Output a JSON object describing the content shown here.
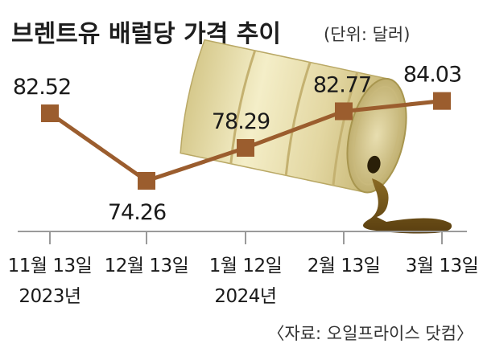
{
  "title": "브렌트유 배럴당 가격 추이",
  "unit": "(단위: 달러)",
  "source": "〈자료: 오일프라이스 닷컴〉",
  "colors": {
    "line": "#9b5d2e",
    "marker": "#9b5d2e",
    "barrel": "#e6dcaa",
    "oil": "#7a5a1c"
  },
  "chart_data": {
    "type": "line",
    "categories": [
      "11월 13일",
      "12월 13일",
      "1월 12일",
      "2월 13일",
      "3월 13일"
    ],
    "category_years": [
      "2023년",
      "",
      "2024년",
      "",
      ""
    ],
    "values": [
      82.52,
      74.26,
      78.29,
      82.77,
      84.03
    ],
    "value_labels": [
      "82.52",
      "74.26",
      "78.29",
      "82.77",
      "84.03"
    ],
    "ylim": [
      70,
      90
    ],
    "grid": false,
    "legend": "none"
  }
}
